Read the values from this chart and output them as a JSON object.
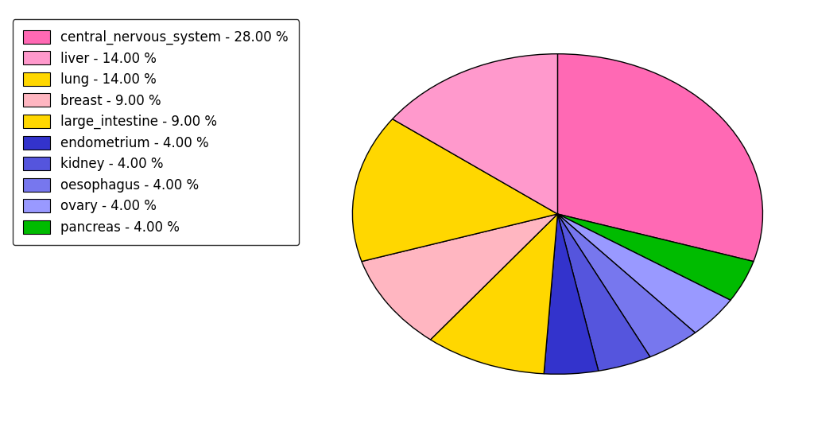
{
  "labels": [
    "central_nervous_system - 28.00 %",
    "liver - 14.00 %",
    "lung - 14.00 %",
    "breast - 9.00 %",
    "large_intestine - 9.00 %",
    "endometrium - 4.00 %",
    "kidney - 4.00 %",
    "oesophagus - 4.00 %",
    "ovary - 4.00 %",
    "pancreas - 4.00 %"
  ],
  "values": [
    28,
    14,
    14,
    9,
    9,
    4,
    4,
    4,
    4,
    4
  ],
  "colors": [
    "#FF69B4",
    "#FFB6C1",
    "#FFD700",
    "#FFB6C1",
    "#FFD700",
    "#4169E1",
    "#7B68EE",
    "#6666FF",
    "#9999FF",
    "#00BB00"
  ],
  "startangle": 90,
  "figsize": [
    10.24,
    5.38
  ],
  "dpi": 100,
  "legend_fontsize": 12,
  "background_color": "#ffffff",
  "edgecolor": "#000000",
  "linewidth": 1.0
}
